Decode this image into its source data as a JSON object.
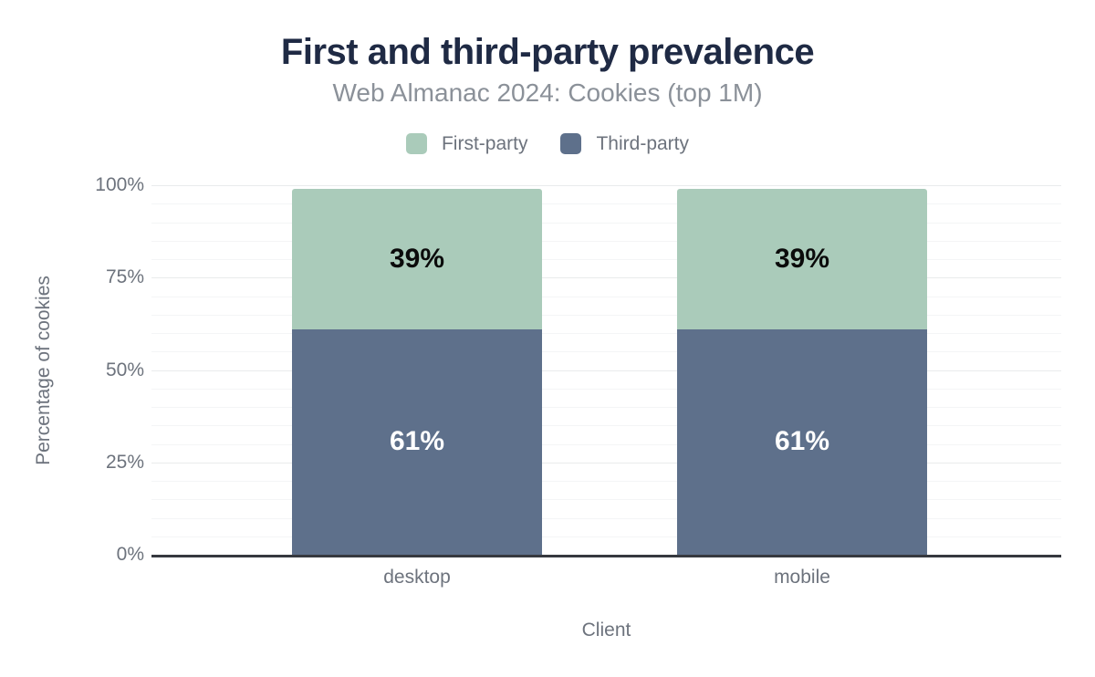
{
  "chart_data": {
    "type": "bar",
    "stacked": true,
    "title": "First and third-party prevalence",
    "subtitle": "Web Almanac 2024: Cookies (top 1M)",
    "xlabel": "Client",
    "ylabel": "Percentage of cookies",
    "categories": [
      "desktop",
      "mobile"
    ],
    "series": [
      {
        "name": "First-party",
        "values": [
          39,
          39
        ],
        "labels": [
          "39%",
          "39%"
        ],
        "color": "#aacbba",
        "label_color": "#0b0b0b",
        "stack_position": "top"
      },
      {
        "name": "Third-party",
        "values": [
          61,
          61
        ],
        "labels": [
          "61%",
          "61%"
        ],
        "color": "#5e708b",
        "label_color": "#ffffff",
        "stack_position": "bottom"
      }
    ],
    "ylim": [
      0,
      100
    ],
    "yticks": [
      {
        "value": 0,
        "label": "0%"
      },
      {
        "value": 25,
        "label": "25%"
      },
      {
        "value": 50,
        "label": "50%"
      },
      {
        "value": 75,
        "label": "75%"
      },
      {
        "value": 100,
        "label": "100%"
      }
    ],
    "minor_grid_step_percent": 5,
    "grid": true,
    "legend_position": "top"
  },
  "colors": {
    "title": "#1f2a44",
    "subtitle": "#8b9199",
    "axis_text": "#6d737d",
    "axis_line": "#36393f",
    "grid_minor": "#f4f5f6",
    "grid_major": "#e9ebec"
  }
}
